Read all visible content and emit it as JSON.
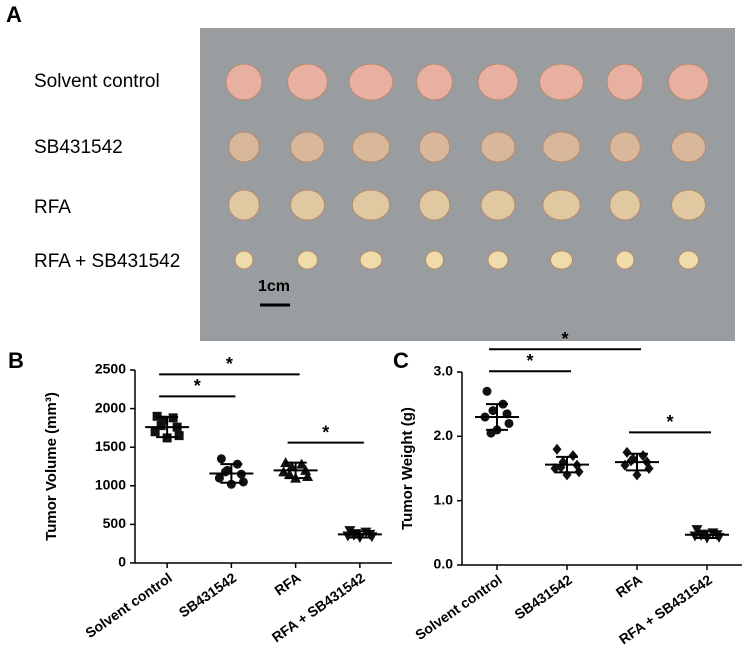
{
  "panel_a": {
    "label": "A",
    "rows": [
      "Solvent control",
      "SB431542",
      "RFA",
      "RFA + SB431542"
    ],
    "scale_bar": "1cm"
  },
  "chart_data": [
    {
      "type": "scatter",
      "panel": "B",
      "ylabel": "Tumor Volume (mm³)",
      "categories": [
        "Solvent control",
        "SB431542",
        "RFA",
        "RFA + SB431542"
      ],
      "markers": [
        "square",
        "circle",
        "triangle-up",
        "triangle-down"
      ],
      "color": "#111111",
      "values": [
        [
          1900,
          1880,
          1850,
          1760,
          1700,
          1650,
          1620,
          1780
        ],
        [
          1350,
          1280,
          1200,
          1150,
          1100,
          1050,
          1020,
          1180
        ],
        [
          1300,
          1280,
          1250,
          1200,
          1180,
          1120,
          1100,
          1150
        ],
        [
          420,
          400,
          380,
          370,
          350,
          340,
          330,
          360
        ]
      ],
      "means": [
        1760,
        1160,
        1200,
        370
      ],
      "sd": [
        130,
        120,
        100,
        40
      ],
      "ylim": [
        0,
        2500
      ],
      "yticks": [
        0,
        500,
        1000,
        1500,
        2000,
        2500
      ],
      "comparisons": [
        {
          "groups": [
            "Solvent control",
            "SB431542"
          ],
          "label": "*"
        },
        {
          "groups": [
            "Solvent control",
            "RFA"
          ],
          "label": "*"
        },
        {
          "groups": [
            "RFA",
            "RFA + SB431542"
          ],
          "label": "*"
        }
      ]
    },
    {
      "type": "scatter",
      "panel": "C",
      "ylabel": "Tumor Weight (g)",
      "categories": [
        "Solvent control",
        "SB431542",
        "RFA",
        "RFA + SB431542"
      ],
      "markers": [
        "circle",
        "diamond",
        "diamond",
        "triangle-down"
      ],
      "color": "#111111",
      "values": [
        [
          2.7,
          2.5,
          2.4,
          2.35,
          2.3,
          2.2,
          2.1,
          2.05
        ],
        [
          1.8,
          1.7,
          1.6,
          1.55,
          1.5,
          1.45,
          1.4,
          1.52
        ],
        [
          1.75,
          1.7,
          1.65,
          1.6,
          1.55,
          1.5,
          1.4,
          1.62
        ],
        [
          0.55,
          0.5,
          0.48,
          0.47,
          0.45,
          0.43,
          0.42,
          0.46
        ]
      ],
      "means": [
        2.3,
        1.56,
        1.6,
        0.47
      ],
      "sd": [
        0.2,
        0.12,
        0.13,
        0.05
      ],
      "ylim": [
        0,
        3.0
      ],
      "yticks": [
        {
          "value": 0,
          "label": "0.0"
        },
        {
          "value": 1,
          "label": "1.0"
        },
        {
          "value": 2,
          "label": "2.0"
        },
        {
          "value": 3,
          "label": "3.0"
        }
      ],
      "comparisons": [
        {
          "groups": [
            "Solvent control",
            "SB431542"
          ],
          "label": "*"
        },
        {
          "groups": [
            "Solvent control",
            "RFA"
          ],
          "label": "*"
        },
        {
          "groups": [
            "RFA",
            "RFA + SB431542"
          ],
          "label": "*"
        }
      ]
    }
  ]
}
